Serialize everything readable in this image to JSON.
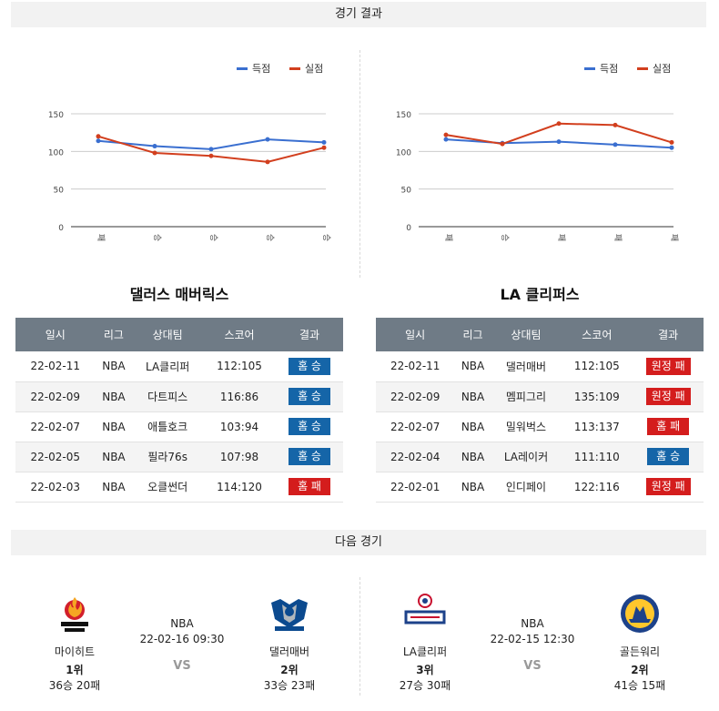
{
  "sections": {
    "results_title": "경기 결과",
    "next_title": "다음 경기"
  },
  "legend": {
    "scored": "득점",
    "conceded": "실점"
  },
  "colors": {
    "scored": "#3a6fd0",
    "conceded": "#d23f1e",
    "home_badge": "#1565a8",
    "loss_badge": "#d41d1d"
  },
  "chart_data": [
    {
      "type": "line",
      "categories": [
        "패",
        "승",
        "승",
        "승",
        "승"
      ],
      "series": [
        {
          "name": "득점",
          "values": [
            114,
            107,
            103,
            116,
            112
          ]
        },
        {
          "name": "실점",
          "values": [
            120,
            98,
            94,
            86,
            105
          ]
        }
      ],
      "yticks": [
        0,
        50,
        100,
        150
      ],
      "ylim": [
        0,
        150
      ],
      "legend": "top-right"
    },
    {
      "type": "line",
      "categories": [
        "패",
        "승",
        "패",
        "패",
        "패"
      ],
      "series": [
        {
          "name": "득점",
          "values": [
            116,
            111,
            113,
            109,
            105
          ]
        },
        {
          "name": "실점",
          "values": [
            122,
            110,
            137,
            135,
            112
          ]
        }
      ],
      "yticks": [
        0,
        50,
        100,
        150
      ],
      "ylim": [
        0,
        150
      ],
      "legend": "top-right"
    }
  ],
  "teams": [
    {
      "title": "댈러스 매버릭스",
      "headers": [
        "일시",
        "리그",
        "상대팀",
        "스코어",
        "결과"
      ],
      "rows": [
        {
          "date": "22-02-11",
          "league": "NBA",
          "opponent": "LA클리퍼",
          "score": "112:105",
          "result": "홈 승",
          "type": "home_win"
        },
        {
          "date": "22-02-09",
          "league": "NBA",
          "opponent": "다트피스",
          "score": "116:86",
          "result": "홈 승",
          "type": "home_win"
        },
        {
          "date": "22-02-07",
          "league": "NBA",
          "opponent": "애틀호크",
          "score": "103:94",
          "result": "홈 승",
          "type": "home_win"
        },
        {
          "date": "22-02-05",
          "league": "NBA",
          "opponent": "필라76s",
          "score": "107:98",
          "result": "홈 승",
          "type": "home_win"
        },
        {
          "date": "22-02-03",
          "league": "NBA",
          "opponent": "오클썬더",
          "score": "114:120",
          "result": "홈 패",
          "type": "loss"
        }
      ]
    },
    {
      "title": "LA 클리퍼스",
      "headers": [
        "일시",
        "리그",
        "상대팀",
        "스코어",
        "결과"
      ],
      "rows": [
        {
          "date": "22-02-11",
          "league": "NBA",
          "opponent": "댈러매버",
          "score": "112:105",
          "result": "원정 패",
          "type": "loss"
        },
        {
          "date": "22-02-09",
          "league": "NBA",
          "opponent": "멤피그리",
          "score": "135:109",
          "result": "원정 패",
          "type": "loss"
        },
        {
          "date": "22-02-07",
          "league": "NBA",
          "opponent": "밀워벅스",
          "score": "113:137",
          "result": "홈 패",
          "type": "loss"
        },
        {
          "date": "22-02-04",
          "league": "NBA",
          "opponent": "LA레이커",
          "score": "111:110",
          "result": "홈 승",
          "type": "home_win"
        },
        {
          "date": "22-02-01",
          "league": "NBA",
          "opponent": "인디페이",
          "score": "122:116",
          "result": "원정 패",
          "type": "loss"
        }
      ]
    }
  ],
  "next_games": [
    {
      "league": "NBA",
      "datetime": "22-02-16 09:30",
      "vs": "VS",
      "home": {
        "name": "마이히트",
        "rank": "1위",
        "record": "36승 20패",
        "logo": "miami-heat-logo"
      },
      "away": {
        "name": "댈러매버",
        "rank": "2위",
        "record": "33승 23패",
        "logo": "dallas-mavericks-logo"
      }
    },
    {
      "league": "NBA",
      "datetime": "22-02-15 12:30",
      "vs": "VS",
      "home": {
        "name": "LA클리퍼",
        "rank": "3위",
        "record": "27승 30패",
        "logo": "la-clippers-logo"
      },
      "away": {
        "name": "골든워리",
        "rank": "2위",
        "record": "41승 15패",
        "logo": "golden-state-warriors-logo"
      }
    }
  ]
}
